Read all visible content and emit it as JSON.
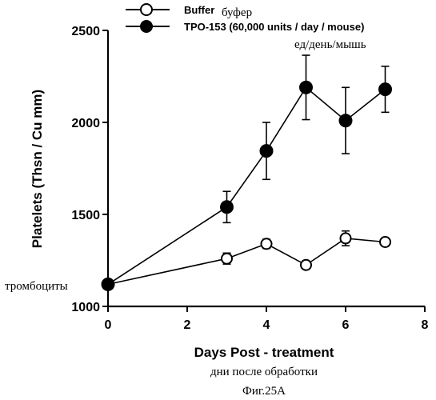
{
  "chart_data": {
    "type": "line",
    "title": "",
    "xlabel": "Days Post - treatment",
    "ylabel": "Platelets (Thsn / Cu mm)",
    "xlim": [
      0,
      8
    ],
    "ylim": [
      1000,
      2500
    ],
    "x_ticks": [
      0,
      2,
      4,
      6,
      8
    ],
    "y_ticks": [
      1000,
      1500,
      2000,
      2500
    ],
    "grid": false,
    "legend_position": "top-left",
    "series": [
      {
        "name": "Buffer",
        "marker": "open-circle",
        "x": [
          0,
          3,
          4,
          5,
          6,
          7
        ],
        "y": [
          1120,
          1260,
          1340,
          1225,
          1370,
          1350
        ],
        "error": [
          0,
          30,
          25,
          0,
          40,
          15
        ]
      },
      {
        "name": "TPO-153 (60,000 units / day / mouse)",
        "marker": "filled-circle",
        "x": [
          0,
          3,
          4,
          5,
          6,
          7
        ],
        "y": [
          1120,
          1540,
          1845,
          2190,
          2010,
          2180
        ],
        "error": [
          0,
          85,
          155,
          175,
          180,
          125
        ]
      }
    ]
  },
  "annotations": {
    "buffer_ru": "буфер",
    "units_ru": "ед/день/мышь",
    "ylabel_ru": "тромбоциты",
    "xlabel_ru": "дни после обработки",
    "figure_caption": "Фиг.25А"
  },
  "colors": {
    "ink": "#000000",
    "background": "#ffffff"
  }
}
